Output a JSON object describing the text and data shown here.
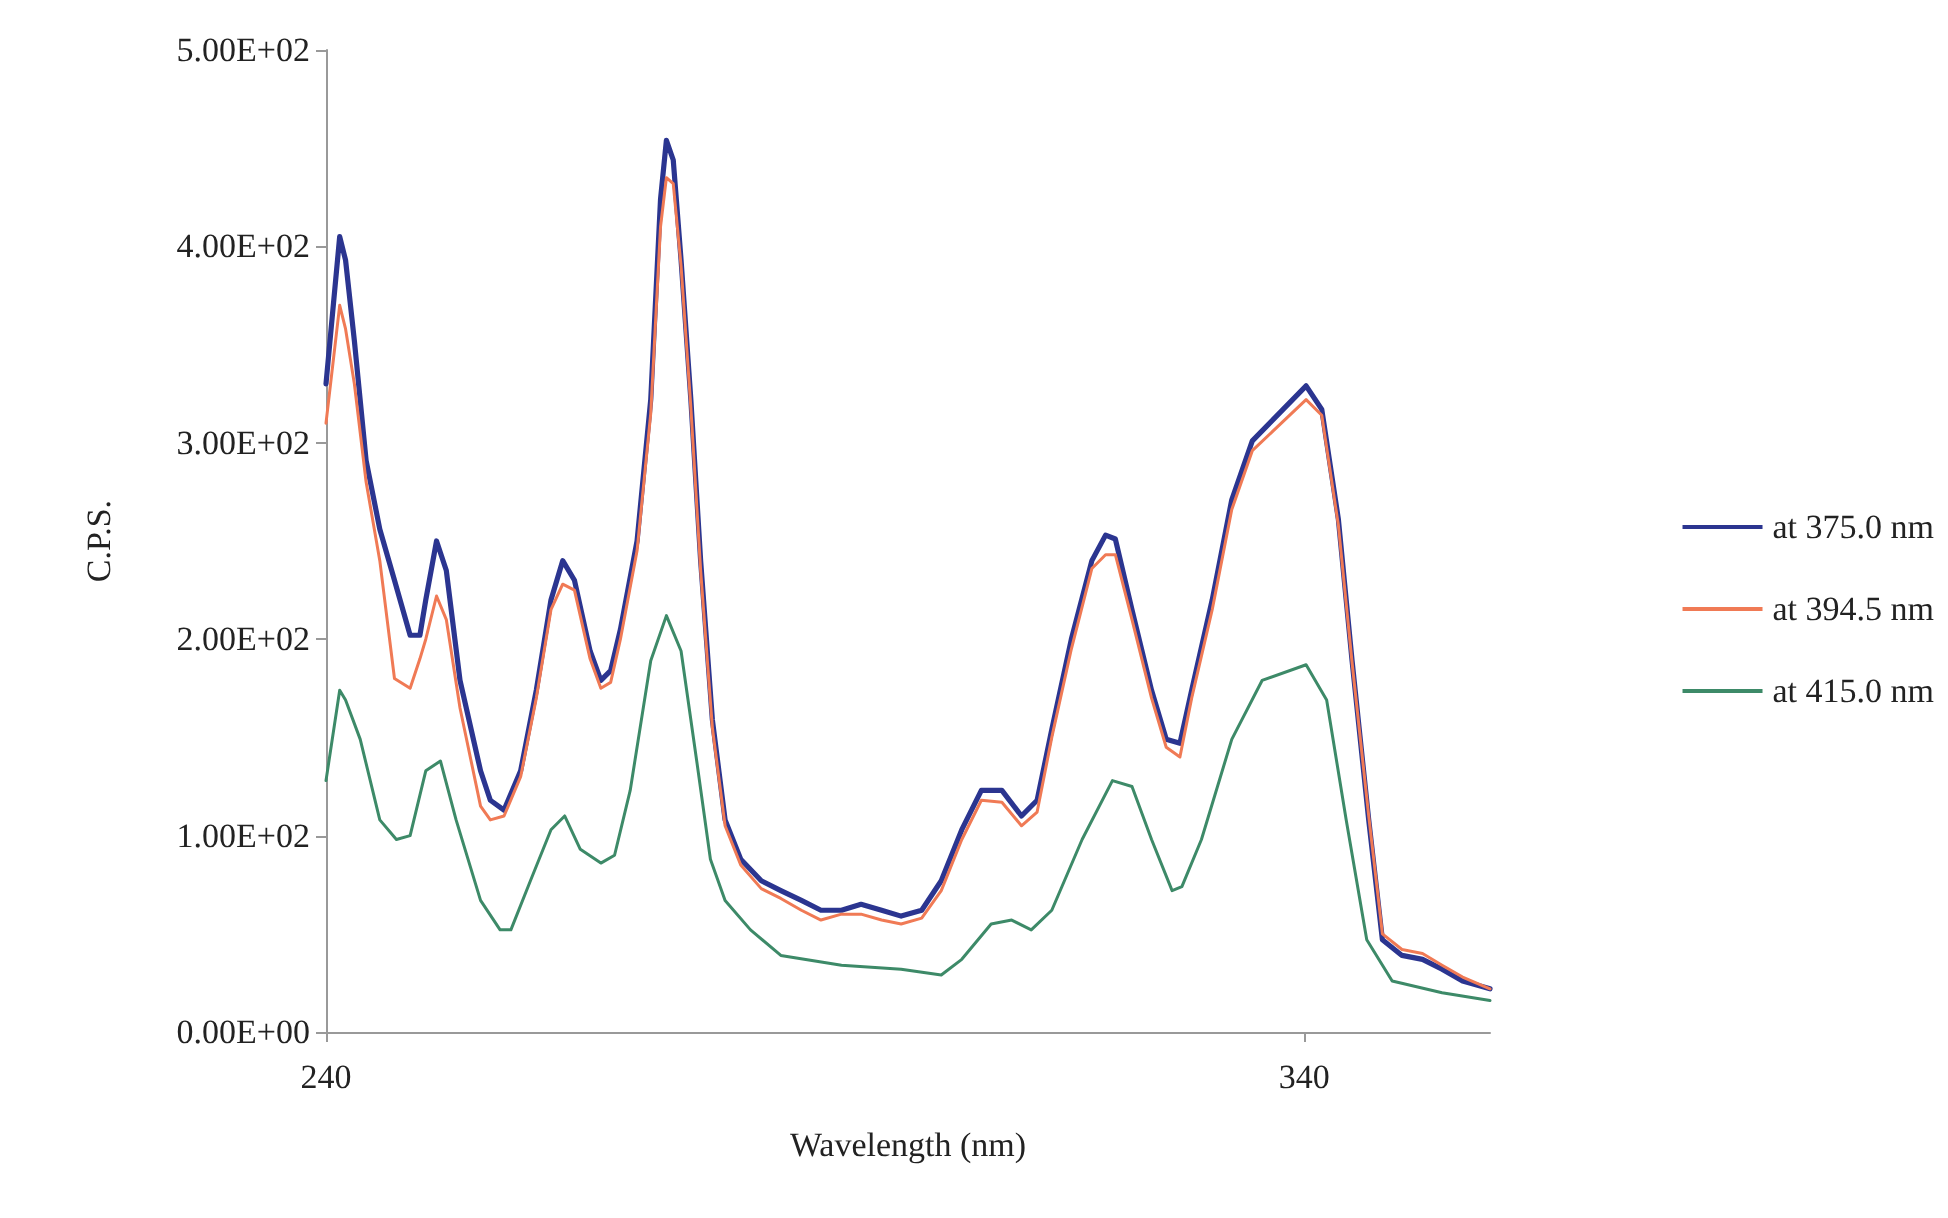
{
  "chart_data": {
    "type": "line",
    "xlabel": "Wavelength (nm)",
    "ylabel": "C.P.S.",
    "xlim": [
      240,
      359
    ],
    "xticks": [
      240,
      340
    ],
    "ylim": [
      0,
      500
    ],
    "yticks": [
      {
        "value": 0,
        "label": "0.00E+00"
      },
      {
        "value": 100,
        "label": "1.00E+02"
      },
      {
        "value": 200,
        "label": "2.00E+02"
      },
      {
        "value": 300,
        "label": "3.00E+02"
      },
      {
        "value": 400,
        "label": "4.00E+02"
      },
      {
        "value": 500,
        "label": "5.00E+02"
      }
    ],
    "grid": false,
    "legend": "right",
    "marker": "none",
    "line_style": "solid",
    "series": [
      {
        "name": "at 375.0 nm",
        "color": "#2b3590",
        "x": [
          240,
          241.4,
          242,
          242.9,
          244.1,
          245.5,
          247,
          248.6,
          249.6,
          250.2,
          251.3,
          252.3,
          253.7,
          255.8,
          256.8,
          258.2,
          259.9,
          261.5,
          263,
          264.2,
          265.4,
          267,
          268.1,
          269.1,
          270.1,
          271.8,
          273.2,
          274.2,
          274.8,
          275.5,
          276.3,
          277.3,
          278.3,
          279.5,
          280.8,
          282.4,
          284.5,
          286.5,
          288.6,
          290.6,
          292.7,
          294.7,
          296.8,
          298.8,
          300.9,
          302.9,
          305,
          307,
          309.1,
          311.1,
          312.7,
          314.2,
          316.2,
          318.3,
          319.7,
          320.7,
          322.4,
          324.4,
          325.9,
          327.3,
          328.5,
          330.6,
          332.6,
          334.7,
          340.2,
          341.8,
          343.5,
          344.9,
          346.6,
          348,
          350,
          352.1,
          354.1,
          356.2,
          359
        ],
        "values": [
          330,
          405,
          393,
          352,
          291,
          256,
          230,
          202,
          202,
          220,
          250,
          235,
          179,
          133,
          118,
          113,
          133,
          174,
          220,
          240,
          230,
          194,
          179,
          184,
          205,
          250,
          322,
          424,
          454,
          444,
          393,
          322,
          240,
          159,
          108,
          88,
          77,
          72,
          67,
          62,
          62,
          65,
          62,
          59,
          62,
          77,
          103,
          123,
          123,
          110,
          118,
          154,
          200,
          240,
          253,
          251,
          215,
          174,
          149,
          147,
          174,
          220,
          271,
          301,
          329,
          317,
          261,
          189,
          108,
          47,
          39,
          37,
          32,
          26,
          22
        ]
      },
      {
        "name": "at 394.5 nm",
        "color": "#f07a55",
        "x": [
          240,
          241.4,
          242,
          242.9,
          244.1,
          245.5,
          247,
          248.6,
          249.6,
          250.2,
          251.3,
          252.3,
          253.7,
          255.8,
          256.8,
          258.2,
          259.9,
          261.5,
          263,
          264.2,
          265.4,
          267,
          268.1,
          269.1,
          270.1,
          271.8,
          273.2,
          274.2,
          274.8,
          275.5,
          276.3,
          277.3,
          278.3,
          279.5,
          280.8,
          282.4,
          284.5,
          286.5,
          288.6,
          290.6,
          292.7,
          294.7,
          296.8,
          298.8,
          300.9,
          302.9,
          305,
          307,
          309.1,
          311.1,
          312.7,
          314.2,
          316.2,
          318.3,
          319.7,
          320.7,
          322.4,
          324.4,
          325.9,
          327.3,
          328.5,
          330.6,
          332.6,
          334.7,
          340.2,
          341.8,
          343.5,
          344.9,
          346.6,
          348,
          350,
          352.1,
          354.1,
          356.2,
          359
        ],
        "values": [
          310,
          370,
          358,
          330,
          280,
          240,
          180,
          175,
          190,
          200,
          222,
          210,
          165,
          115,
          108,
          110,
          130,
          170,
          215,
          228,
          225,
          190,
          175,
          178,
          200,
          245,
          315,
          410,
          435,
          432,
          390,
          318,
          235,
          155,
          105,
          85,
          73,
          68,
          62,
          57,
          60,
          60,
          57,
          55,
          58,
          72,
          98,
          118,
          117,
          105,
          112,
          150,
          195,
          236,
          243,
          243,
          210,
          170,
          145,
          140,
          170,
          215,
          266,
          296,
          322,
          314,
          258,
          188,
          110,
          50,
          42,
          40,
          34,
          28,
          22
        ]
      },
      {
        "name": "at 415.0 nm",
        "color": "#3d8a68",
        "x": [
          240,
          241.4,
          242,
          243.5,
          245.5,
          247.2,
          248.6,
          250.2,
          251.7,
          253.3,
          255.8,
          257.8,
          258.9,
          260.9,
          263,
          264.4,
          266,
          268.1,
          269.5,
          271.1,
          273.2,
          274.8,
          276.3,
          277.9,
          279.3,
          280.8,
          283.4,
          286.5,
          292.7,
          298.8,
          302.9,
          305,
          308,
          310.1,
          312.1,
          314.2,
          317.3,
          320.4,
          322.4,
          324.4,
          326.5,
          327.5,
          329.5,
          332.6,
          335.7,
          340.2,
          342.3,
          344.3,
          346.4,
          349,
          354.1,
          359
        ],
        "values": [
          128,
          174,
          169,
          149,
          108,
          98,
          100,
          133,
          138,
          108,
          67,
          52,
          52,
          77,
          103,
          110,
          93,
          86,
          90,
          123,
          189,
          212,
          194,
          138,
          88,
          67,
          52,
          39,
          34,
          32,
          29,
          37,
          55,
          57,
          52,
          62,
          98,
          128,
          125,
          98,
          72,
          74,
          98,
          149,
          179,
          187,
          169,
          108,
          47,
          26,
          20,
          16
        ]
      }
    ]
  }
}
